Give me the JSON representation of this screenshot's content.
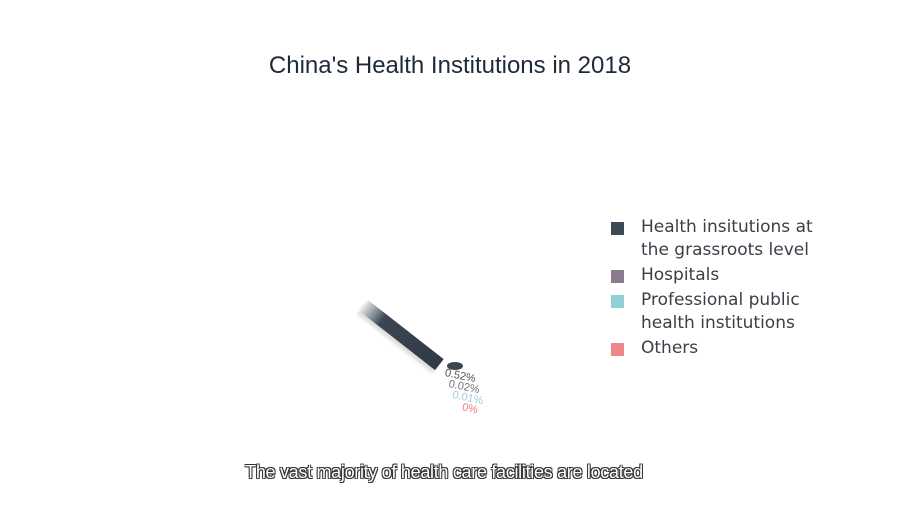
{
  "chart_data": {
    "type": "pie",
    "title": "China's Health Institutions in 2018",
    "categories": [
      "Health insitutions at the grassroots level",
      "Hospitals",
      "Professional public health institutions",
      "Others"
    ],
    "data_labels": [
      "0.52%",
      "0.02%",
      "0.01%",
      "0%"
    ],
    "values": [
      0.52,
      0.02,
      0.01,
      0
    ],
    "colors": [
      "#3d4955",
      "#8b7b8f",
      "#92cfd6",
      "#f0868a"
    ],
    "legend_position": "right"
  },
  "caption": "The vast majority of health care facilities are located"
}
